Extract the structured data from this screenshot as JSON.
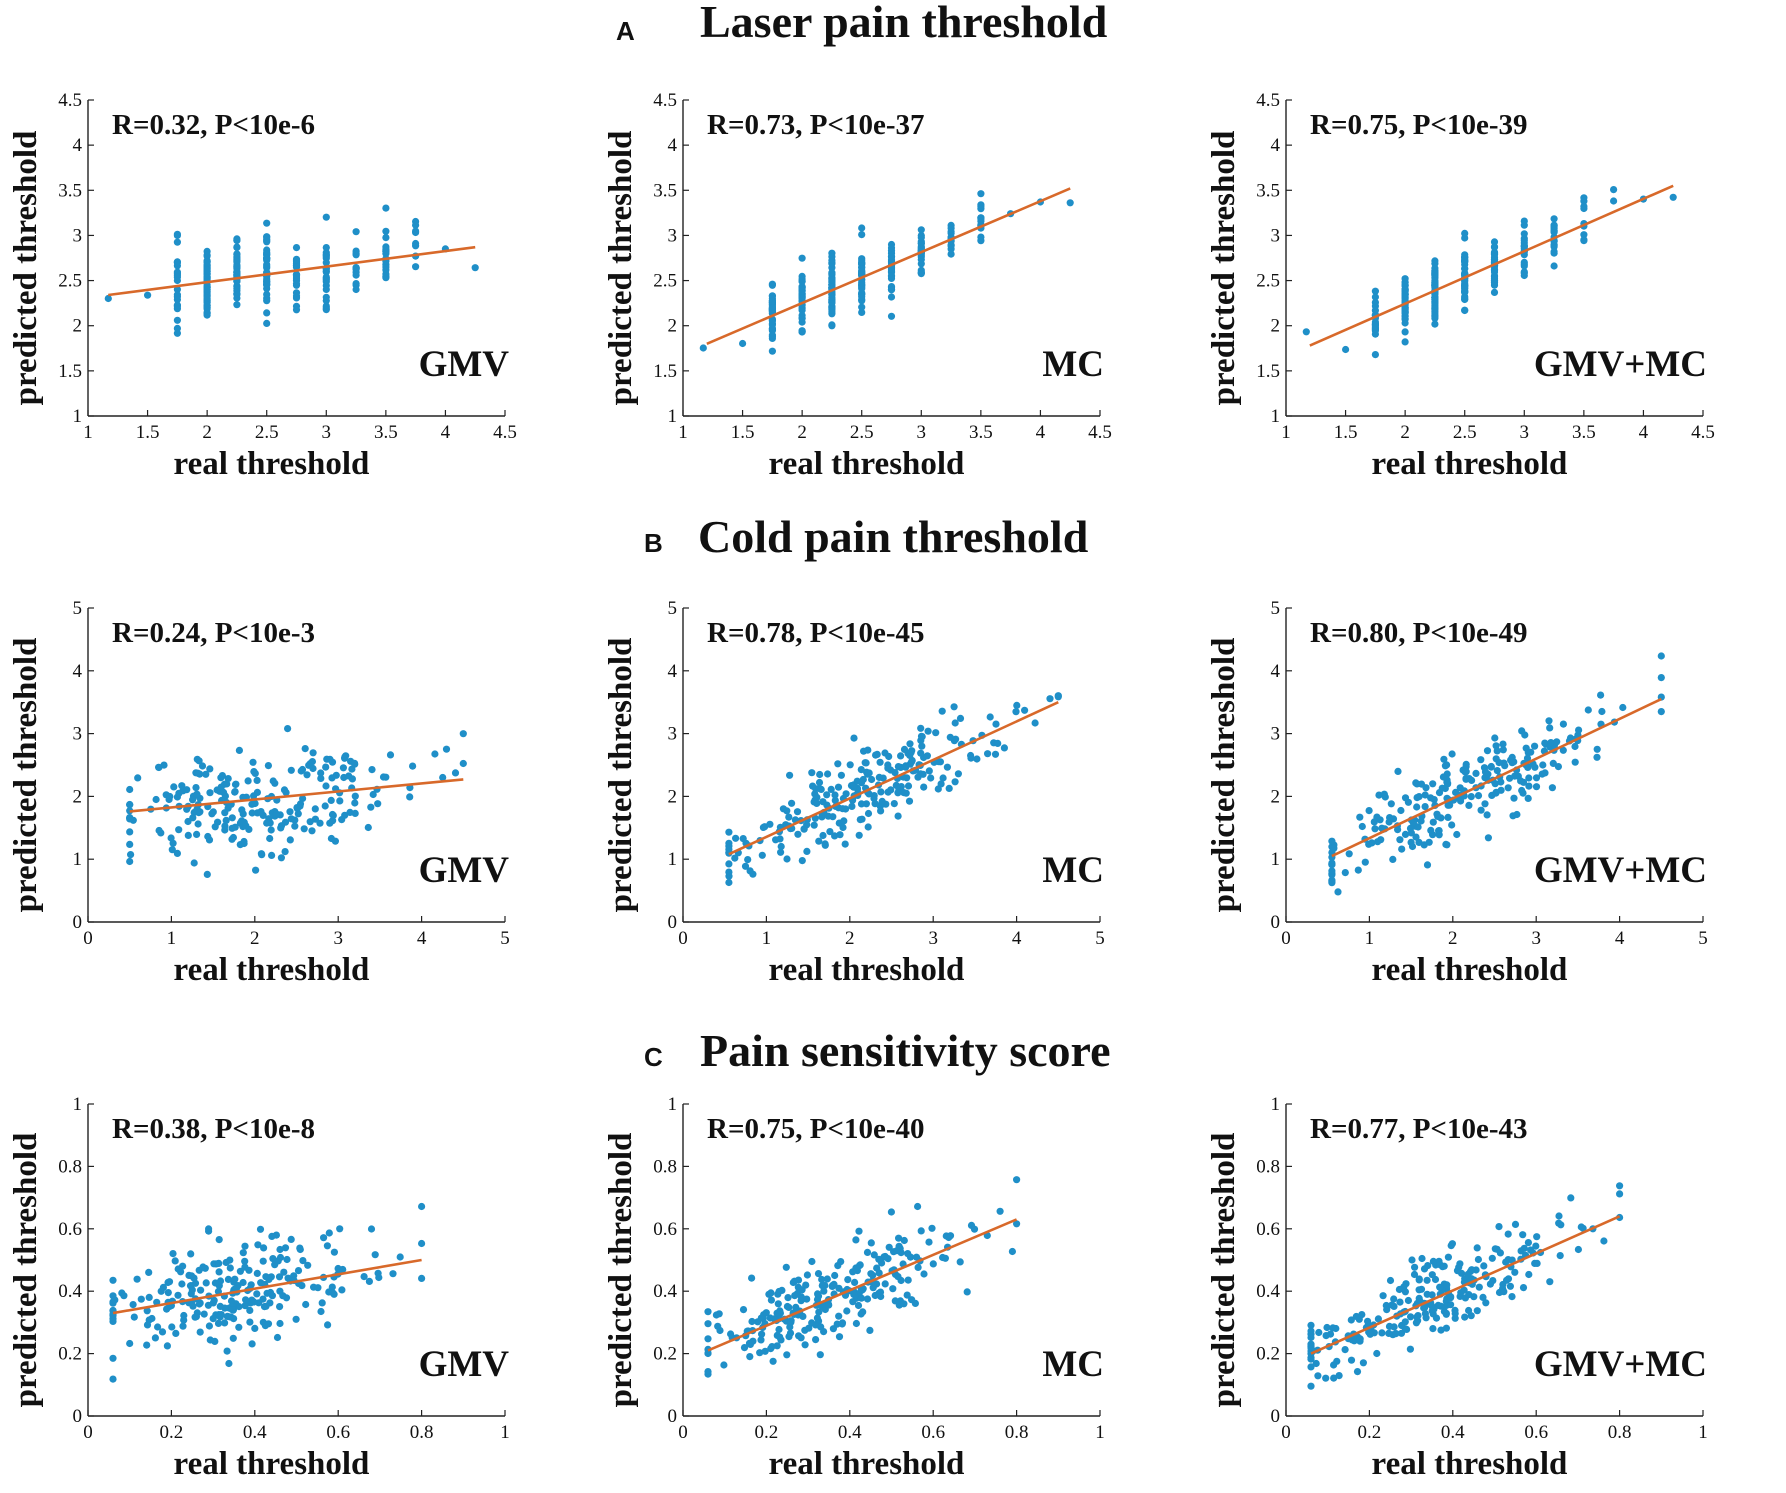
{
  "colors": {
    "points": "#1f8fc8",
    "fit_line": "#d8692a",
    "axes": "#222222"
  },
  "rows": [
    {
      "letter": "A",
      "title": "Laser pain threshold"
    },
    {
      "letter": "B",
      "title": "Cold pain threshold"
    },
    {
      "letter": "C",
      "title": "Pain sensitivity score"
    }
  ],
  "chart_data": [
    {
      "type": "scatter",
      "row": 0,
      "col": 0,
      "model": "GMV",
      "annotation": "R=0.32, P<10e-6",
      "xlabel": "real threshold",
      "ylabel": "predicted threshold",
      "xlim": [
        1,
        4.5
      ],
      "ylim": [
        1,
        4.5
      ],
      "xticks": [
        1,
        1.5,
        2,
        2.5,
        3,
        3.5,
        4,
        4.5
      ],
      "yticks": [
        1,
        1.5,
        2,
        2.5,
        3,
        3.5,
        4,
        4.5
      ],
      "fit": [
        [
          1.17,
          2.34
        ],
        [
          4.25,
          2.87
        ]
      ],
      "discrete": true,
      "n": 240,
      "r": 0.32
    },
    {
      "type": "scatter",
      "row": 0,
      "col": 1,
      "model": "MC",
      "annotation": "R=0.73, P<10e-37",
      "xlabel": "real threshold",
      "ylabel": "predicted threshold",
      "xlim": [
        1,
        4.5
      ],
      "ylim": [
        1,
        4.5
      ],
      "xticks": [
        1,
        1.5,
        2,
        2.5,
        3,
        3.5,
        4,
        4.5
      ],
      "yticks": [
        1,
        1.5,
        2,
        2.5,
        3,
        3.5,
        4,
        4.5
      ],
      "fit": [
        [
          1.2,
          1.8
        ],
        [
          4.25,
          3.52
        ]
      ],
      "discrete": true,
      "n": 240,
      "r": 0.73
    },
    {
      "type": "scatter",
      "row": 0,
      "col": 2,
      "model": "GMV+MC",
      "annotation": "R=0.75, P<10e-39",
      "xlabel": "real threshold",
      "ylabel": "predicted threshold",
      "xlim": [
        1,
        4.5
      ],
      "ylim": [
        1,
        4.5
      ],
      "xticks": [
        1,
        1.5,
        2,
        2.5,
        3,
        3.5,
        4,
        4.5
      ],
      "yticks": [
        1,
        1.5,
        2,
        2.5,
        3,
        3.5,
        4,
        4.5
      ],
      "fit": [
        [
          1.2,
          1.78
        ],
        [
          4.25,
          3.55
        ]
      ],
      "discrete": true,
      "n": 240,
      "r": 0.75
    },
    {
      "type": "scatter",
      "row": 1,
      "col": 0,
      "model": "GMV",
      "annotation": "R=0.24, P<10e-3",
      "xlabel": "real threshold",
      "ylabel": "predicted threshold",
      "xlim": [
        0,
        5
      ],
      "ylim": [
        0,
        5
      ],
      "xticks": [
        0,
        1,
        2,
        3,
        4,
        5
      ],
      "yticks": [
        0,
        1,
        2,
        3,
        4,
        5
      ],
      "fit": [
        [
          0.5,
          1.76
        ],
        [
          4.5,
          2.27
        ]
      ],
      "discrete": false,
      "n": 240,
      "r": 0.24
    },
    {
      "type": "scatter",
      "row": 1,
      "col": 1,
      "model": "MC",
      "annotation": "R=0.78, P<10e-45",
      "xlabel": "real threshold",
      "ylabel": "predicted threshold",
      "xlim": [
        0,
        5
      ],
      "ylim": [
        0,
        5
      ],
      "xticks": [
        0,
        1,
        2,
        3,
        4,
        5
      ],
      "yticks": [
        0,
        1,
        2,
        3,
        4,
        5
      ],
      "fit": [
        [
          0.55,
          1.08
        ],
        [
          4.5,
          3.5
        ]
      ],
      "discrete": false,
      "n": 240,
      "r": 0.78
    },
    {
      "type": "scatter",
      "row": 1,
      "col": 2,
      "model": "GMV+MC",
      "annotation": "R=0.80, P<10e-49",
      "xlabel": "real threshold",
      "ylabel": "predicted threshold",
      "xlim": [
        0,
        5
      ],
      "ylim": [
        0,
        5
      ],
      "xticks": [
        0,
        1,
        2,
        3,
        4,
        5
      ],
      "yticks": [
        0,
        1,
        2,
        3,
        4,
        5
      ],
      "fit": [
        [
          0.55,
          1.05
        ],
        [
          4.5,
          3.55
        ]
      ],
      "discrete": false,
      "n": 240,
      "r": 0.8
    },
    {
      "type": "scatter",
      "row": 2,
      "col": 0,
      "model": "GMV",
      "annotation": "R=0.38, P<10e-8",
      "xlabel": "real threshold",
      "ylabel": "predicted threshold",
      "xlim": [
        0,
        1
      ],
      "ylim": [
        0,
        1
      ],
      "xticks": [
        0,
        0.2,
        0.4,
        0.6,
        0.8,
        1
      ],
      "yticks": [
        0,
        0.2,
        0.4,
        0.6,
        0.8,
        1
      ],
      "fit": [
        [
          0.06,
          0.33
        ],
        [
          0.8,
          0.5
        ]
      ],
      "discrete": false,
      "n": 240,
      "r": 0.38
    },
    {
      "type": "scatter",
      "row": 2,
      "col": 1,
      "model": "MC",
      "annotation": "R=0.75, P<10e-40",
      "xlabel": "real threshold",
      "ylabel": "predicted threshold",
      "xlim": [
        0,
        1
      ],
      "ylim": [
        0,
        1
      ],
      "xticks": [
        0,
        0.2,
        0.4,
        0.6,
        0.8,
        1
      ],
      "yticks": [
        0,
        0.2,
        0.4,
        0.6,
        0.8,
        1
      ],
      "fit": [
        [
          0.06,
          0.21
        ],
        [
          0.8,
          0.63
        ]
      ],
      "discrete": false,
      "n": 240,
      "r": 0.75
    },
    {
      "type": "scatter",
      "row": 2,
      "col": 2,
      "model": "GMV+MC",
      "annotation": "R=0.77, P<10e-43",
      "xlabel": "real threshold",
      "ylabel": "predicted threshold",
      "xlim": [
        0,
        1
      ],
      "ylim": [
        0,
        1
      ],
      "xticks": [
        0,
        0.2,
        0.4,
        0.6,
        0.8,
        1
      ],
      "yticks": [
        0,
        0.2,
        0.4,
        0.6,
        0.8,
        1
      ],
      "fit": [
        [
          0.06,
          0.2
        ],
        [
          0.8,
          0.64
        ]
      ],
      "discrete": false,
      "n": 240,
      "r": 0.77
    }
  ]
}
